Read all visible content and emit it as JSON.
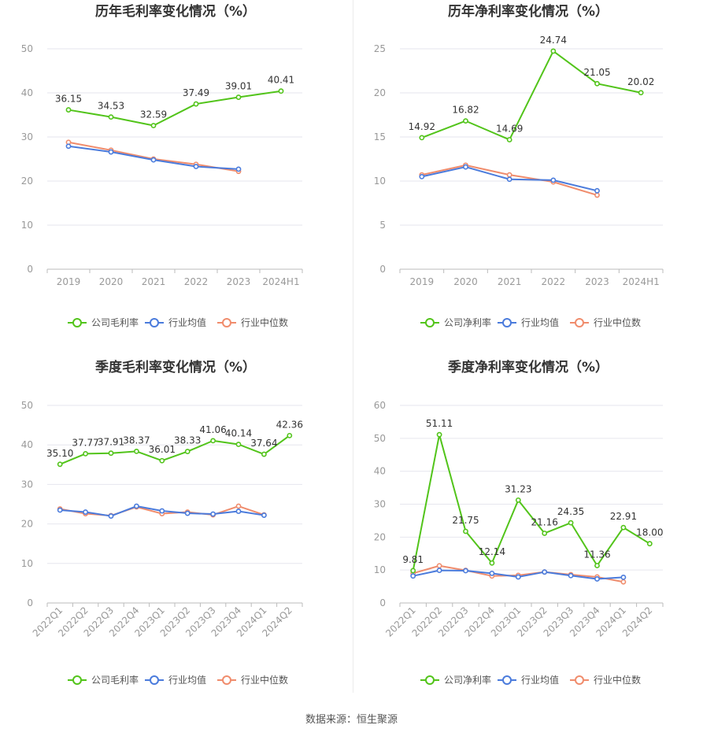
{
  "source_text": "数据来源：恒生聚源",
  "colors": {
    "company": "#52c41a",
    "industry_avg": "#4a7bdc",
    "industry_median": "#f08c6c",
    "grid": "#e6e6ee",
    "axis": "#bbbbbb"
  },
  "chart_data": [
    {
      "type": "line",
      "title": "历年毛利率变化情况（%）",
      "categories": [
        "2019",
        "2020",
        "2021",
        "2022",
        "2023",
        "2024H1"
      ],
      "ylim": [
        0,
        50
      ],
      "yticks": [
        0,
        10,
        20,
        30,
        40,
        50
      ],
      "xlabel": "",
      "ylabel": "",
      "legend_position": "bottom",
      "series": [
        {
          "name": "公司毛利率",
          "color_key": "company",
          "labeled": true,
          "values": [
            36.15,
            34.53,
            32.59,
            37.49,
            39.01,
            40.41
          ]
        },
        {
          "name": "行业均值",
          "color_key": "industry_avg",
          "labeled": false,
          "values": [
            27.9,
            26.6,
            24.8,
            23.3,
            22.7,
            null
          ]
        },
        {
          "name": "行业中位数",
          "color_key": "industry_median",
          "labeled": false,
          "values": [
            28.8,
            27.0,
            25.0,
            23.8,
            22.2,
            null
          ]
        }
      ]
    },
    {
      "type": "line",
      "title": "历年净利率变化情况（%）",
      "categories": [
        "2019",
        "2020",
        "2021",
        "2022",
        "2023",
        "2024H1"
      ],
      "ylim": [
        0,
        25
      ],
      "yticks": [
        0,
        5,
        10,
        15,
        20,
        25
      ],
      "xlabel": "",
      "ylabel": "",
      "legend_position": "bottom",
      "series": [
        {
          "name": "公司净利率",
          "color_key": "company",
          "labeled": true,
          "values": [
            14.92,
            16.82,
            14.69,
            24.74,
            21.05,
            20.02
          ]
        },
        {
          "name": "行业均值",
          "color_key": "industry_avg",
          "labeled": false,
          "values": [
            10.5,
            11.6,
            10.2,
            10.1,
            8.9,
            null
          ]
        },
        {
          "name": "行业中位数",
          "color_key": "industry_median",
          "labeled": false,
          "values": [
            10.7,
            11.8,
            10.7,
            9.9,
            8.4,
            null
          ]
        }
      ]
    },
    {
      "type": "line",
      "title": "季度毛利率变化情况（%）",
      "categories": [
        "2022Q1",
        "2022Q2",
        "2022Q3",
        "2022Q4",
        "2023Q1",
        "2023Q2",
        "2023Q3",
        "2023Q4",
        "2024Q1",
        "2024Q2"
      ],
      "ylim": [
        0,
        50
      ],
      "yticks": [
        0,
        10,
        20,
        30,
        40,
        50
      ],
      "xlabel": "",
      "ylabel": "",
      "legend_position": "bottom",
      "series": [
        {
          "name": "公司毛利率",
          "color_key": "company",
          "labeled": true,
          "values": [
            35.1,
            37.77,
            37.91,
            38.37,
            36.01,
            38.33,
            41.06,
            40.14,
            37.64,
            42.36
          ]
        },
        {
          "name": "行业均值",
          "color_key": "industry_avg",
          "labeled": false,
          "values": [
            23.5,
            23.0,
            22.0,
            24.5,
            23.3,
            22.7,
            22.5,
            23.2,
            22.2,
            null
          ]
        },
        {
          "name": "行业中位数",
          "color_key": "industry_median",
          "labeled": false,
          "values": [
            23.8,
            22.6,
            22.1,
            24.3,
            22.6,
            23.0,
            22.3,
            24.5,
            22.3,
            null
          ]
        }
      ]
    },
    {
      "type": "line",
      "title": "季度净利率变化情况（%）",
      "categories": [
        "2022Q1",
        "2022Q2",
        "2022Q3",
        "2022Q4",
        "2023Q1",
        "2023Q2",
        "2023Q3",
        "2023Q4",
        "2024Q1",
        "2024Q2"
      ],
      "ylim": [
        0,
        60
      ],
      "yticks": [
        0,
        10,
        20,
        30,
        40,
        50,
        60
      ],
      "xlabel": "",
      "ylabel": "",
      "legend_position": "bottom",
      "series": [
        {
          "name": "公司净利率",
          "color_key": "company",
          "labeled": true,
          "values": [
            9.81,
            51.11,
            21.75,
            12.14,
            31.23,
            21.16,
            24.35,
            11.36,
            22.91,
            18.0
          ]
        },
        {
          "name": "行业均值",
          "color_key": "industry_avg",
          "labeled": false,
          "values": [
            8.2,
            9.9,
            9.8,
            9.0,
            7.9,
            9.4,
            8.3,
            7.3,
            7.8,
            null
          ]
        },
        {
          "name": "行业中位数",
          "color_key": "industry_median",
          "labeled": false,
          "values": [
            9.0,
            11.3,
            9.9,
            8.2,
            8.4,
            9.4,
            8.6,
            7.9,
            6.4,
            null
          ]
        }
      ]
    }
  ]
}
